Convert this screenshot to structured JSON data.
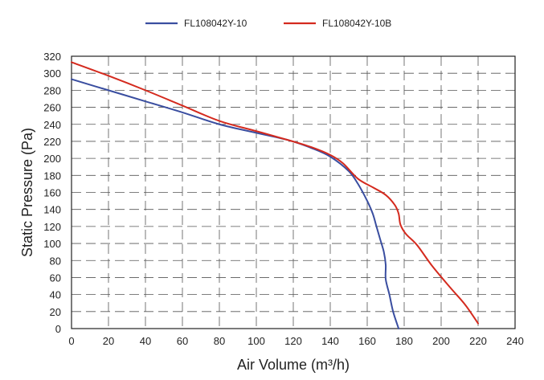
{
  "chart_data": {
    "type": "line",
    "xlabel": "Air Volume (m³/h)",
    "ylabel": "Static Pressure (Pa)",
    "xlim": [
      0,
      240
    ],
    "ylim": [
      0,
      320
    ],
    "xticks": [
      0,
      20,
      40,
      60,
      80,
      100,
      120,
      140,
      160,
      180,
      200,
      220,
      240
    ],
    "yticks": [
      0,
      20,
      40,
      60,
      80,
      100,
      120,
      140,
      160,
      180,
      200,
      220,
      240,
      260,
      280,
      300,
      320
    ],
    "grid": true,
    "legend_position": "top-center",
    "series": [
      {
        "name": "FL108042Y-10",
        "color": "#3a4ea0",
        "points": [
          [
            0,
            293
          ],
          [
            20,
            280
          ],
          [
            40,
            267
          ],
          [
            60,
            254
          ],
          [
            80,
            240
          ],
          [
            100,
            230
          ],
          [
            118,
            221
          ],
          [
            130,
            212
          ],
          [
            140,
            202
          ],
          [
            150,
            185
          ],
          [
            155,
            170
          ],
          [
            160,
            150
          ],
          [
            163,
            135
          ],
          [
            165,
            120
          ],
          [
            167,
            105
          ],
          [
            169,
            90
          ],
          [
            170,
            75
          ],
          [
            170,
            58
          ],
          [
            172,
            40
          ],
          [
            174,
            20
          ],
          [
            177,
            0
          ]
        ]
      },
      {
        "name": "FL108042Y-10B",
        "color": "#d42a1e",
        "points": [
          [
            0,
            313
          ],
          [
            20,
            297
          ],
          [
            40,
            280
          ],
          [
            60,
            262
          ],
          [
            80,
            244
          ],
          [
            100,
            232
          ],
          [
            118,
            221
          ],
          [
            130,
            213
          ],
          [
            140,
            204
          ],
          [
            147,
            194
          ],
          [
            155,
            176
          ],
          [
            163,
            166
          ],
          [
            170,
            157
          ],
          [
            175,
            145
          ],
          [
            177,
            135
          ],
          [
            178,
            122
          ],
          [
            181,
            111
          ],
          [
            187,
            98
          ],
          [
            195,
            74
          ],
          [
            205,
            48
          ],
          [
            213,
            28
          ],
          [
            220,
            6
          ]
        ]
      }
    ]
  }
}
